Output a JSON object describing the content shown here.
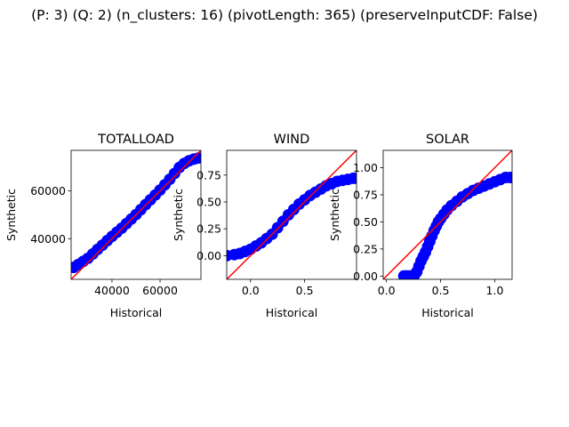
{
  "suptitle": "(P: 3) (Q: 2) (n_clusters: 16) (pivotLength: 365) (preserveInputCDF: False)",
  "colors": {
    "points": "#0000ff",
    "diagonal": "#ff0000",
    "axes": "#000000"
  },
  "chart_data": [
    {
      "type": "scatter",
      "title": "TOTALLOAD",
      "xlabel": "Historical",
      "ylabel": "Synthetic",
      "xlim": [
        23000,
        77000
      ],
      "ylim": [
        23000,
        77000
      ],
      "xticks": [
        40000,
        60000
      ],
      "xtick_labels": [
        "40000",
        "60000"
      ],
      "yticks": [
        40000,
        60000
      ],
      "ytick_labels": [
        "40000",
        "60000"
      ],
      "reference_line": "y = x",
      "series": [
        {
          "x": [
            24000,
            26000,
            28000,
            30000,
            32000,
            34000,
            36000,
            38000,
            40000,
            42000,
            44000,
            46000,
            48000,
            50000,
            52000,
            54000,
            56000,
            58000,
            60000,
            62000,
            64000,
            66000,
            68000,
            70000,
            72000,
            74000,
            76000
          ],
          "y": [
            28000,
            29200,
            30500,
            31800,
            33600,
            35500,
            37300,
            39200,
            41000,
            42700,
            44400,
            46300,
            48200,
            50100,
            52200,
            54300,
            56300,
            58300,
            60400,
            62600,
            64900,
            67300,
            69800,
            71500,
            72600,
            73300,
            73800
          ]
        }
      ]
    },
    {
      "type": "scatter",
      "title": "WIND",
      "xlabel": "Historical",
      "ylabel": "Synthetic",
      "xlim": [
        -0.22,
        0.98
      ],
      "ylim": [
        -0.22,
        0.98
      ],
      "xticks": [
        0.0,
        0.5
      ],
      "xtick_labels": [
        "0.0",
        "0.5"
      ],
      "yticks": [
        0.0,
        0.25,
        0.5,
        0.75
      ],
      "ytick_labels": [
        "0.00",
        "0.25",
        "0.50",
        "0.75"
      ],
      "reference_line": "y = x",
      "series": [
        {
          "x": [
            -0.22,
            -0.15,
            -0.1,
            -0.05,
            0.0,
            0.05,
            0.1,
            0.15,
            0.2,
            0.25,
            0.3,
            0.35,
            0.4,
            0.45,
            0.5,
            0.55,
            0.6,
            0.65,
            0.7,
            0.75,
            0.8,
            0.85,
            0.9,
            0.95,
            0.98
          ],
          "y": [
            0.0,
            0.01,
            0.02,
            0.04,
            0.06,
            0.09,
            0.12,
            0.16,
            0.2,
            0.26,
            0.32,
            0.38,
            0.43,
            0.48,
            0.52,
            0.56,
            0.59,
            0.62,
            0.65,
            0.67,
            0.69,
            0.7,
            0.71,
            0.72,
            0.72
          ]
        }
      ]
    },
    {
      "type": "scatter",
      "title": "SOLAR",
      "xlabel": "Historical",
      "ylabel": "Synthetic",
      "xlim": [
        -0.03,
        1.16
      ],
      "ylim": [
        -0.03,
        1.16
      ],
      "xticks": [
        0.0,
        0.5,
        1.0
      ],
      "xtick_labels": [
        "0.0",
        "0.5",
        "1.0"
      ],
      "yticks": [
        0.0,
        0.25,
        0.5,
        0.75,
        1.0
      ],
      "ytick_labels": [
        "0.00",
        "0.25",
        "0.50",
        "0.75",
        "1.00"
      ],
      "reference_line": "y = x",
      "series": [
        {
          "x": [
            0.16,
            0.18,
            0.2,
            0.22,
            0.24,
            0.26,
            0.28,
            0.3,
            0.32,
            0.34,
            0.36,
            0.38,
            0.4,
            0.42,
            0.44,
            0.46,
            0.48,
            0.5,
            0.53,
            0.56,
            0.6,
            0.65,
            0.7,
            0.75,
            0.8,
            0.85,
            0.9,
            0.95,
            1.0,
            1.05,
            1.1,
            1.14
          ],
          "y": [
            0.0,
            0.0,
            0.0,
            0.0,
            0.0,
            0.01,
            0.04,
            0.09,
            0.14,
            0.18,
            0.22,
            0.27,
            0.32,
            0.37,
            0.42,
            0.46,
            0.5,
            0.53,
            0.57,
            0.61,
            0.65,
            0.69,
            0.73,
            0.76,
            0.79,
            0.81,
            0.83,
            0.85,
            0.87,
            0.89,
            0.91,
            0.91
          ]
        }
      ]
    }
  ]
}
